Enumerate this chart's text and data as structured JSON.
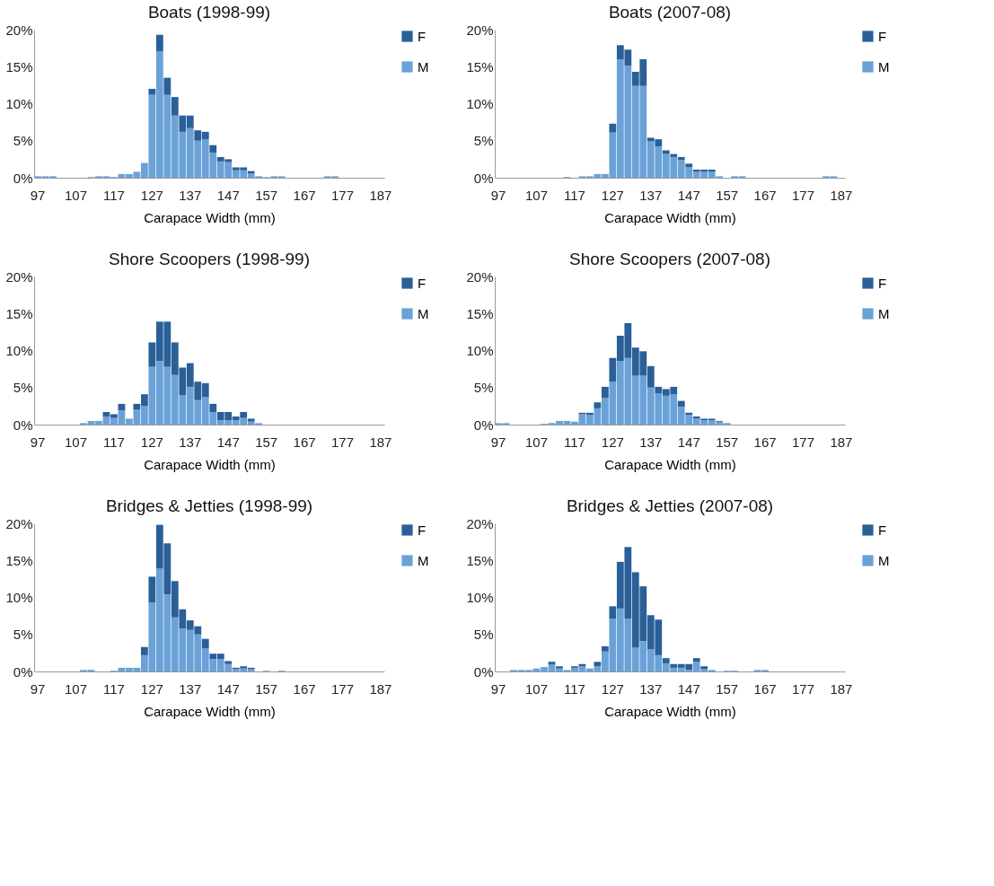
{
  "chart_data": [
    {
      "type": "bar",
      "title": "Boats (1998-99)",
      "xlabel": "Carapace Width (mm)",
      "categories": [
        "97",
        null,
        null,
        null,
        null,
        "107",
        null,
        null,
        null,
        null,
        "117",
        null,
        null,
        null,
        null,
        "127",
        null,
        null,
        null,
        null,
        "137",
        null,
        null,
        null,
        null,
        "147",
        null,
        null,
        null,
        null,
        "157",
        null,
        null,
        null,
        null,
        "167",
        null,
        null,
        null,
        null,
        "177",
        null,
        null,
        null,
        null,
        "187"
      ],
      "stacked": true,
      "ylim": [
        0,
        20
      ],
      "yticks": [
        {
          "value": 0,
          "label": "0%"
        },
        {
          "value": 5,
          "label": "5%"
        },
        {
          "value": 10,
          "label": "10%"
        },
        {
          "value": 15,
          "label": "15%"
        },
        {
          "value": 20,
          "label": "20%"
        }
      ],
      "legend": "right",
      "grid": false,
      "series": [
        {
          "name": "M",
          "color": "#6aa2d8",
          "values": [
            0.2,
            0.2,
            0.2,
            0,
            0,
            0,
            0,
            0.1,
            0.2,
            0.2,
            0.1,
            0.5,
            0.5,
            0.8,
            2.0,
            11.2,
            17.1,
            11.2,
            8.4,
            6.2,
            6.7,
            5.0,
            5.2,
            3.4,
            2.2,
            2.1,
            1.0,
            1.0,
            0.6,
            0.2,
            0.1,
            0.2,
            0.2,
            0,
            0,
            0,
            0,
            0,
            0.2,
            0.2,
            0,
            0,
            0,
            0,
            0,
            0
          ]
        },
        {
          "name": "F",
          "color": "#2a5f98",
          "values": [
            0,
            0,
            0,
            0,
            0,
            0,
            0,
            0,
            0,
            0,
            0,
            0,
            0,
            0,
            0,
            0.8,
            2.2,
            2.3,
            2.5,
            2.2,
            1.7,
            1.4,
            1.0,
            1.0,
            0.6,
            0.4,
            0.4,
            0.4,
            0.3,
            0,
            0,
            0,
            0,
            0,
            0,
            0,
            0,
            0,
            0,
            0,
            0,
            0,
            0,
            0,
            0,
            0
          ]
        }
      ]
    },
    {
      "type": "bar",
      "title": "Boats (2007-08)",
      "xlabel": "Carapace Width (mm)",
      "categories": [
        "97",
        null,
        null,
        null,
        null,
        "107",
        null,
        null,
        null,
        null,
        "117",
        null,
        null,
        null,
        null,
        "127",
        null,
        null,
        null,
        null,
        "137",
        null,
        null,
        null,
        null,
        "147",
        null,
        null,
        null,
        null,
        "157",
        null,
        null,
        null,
        null,
        "167",
        null,
        null,
        null,
        null,
        "177",
        null,
        null,
        null,
        null,
        "187"
      ],
      "stacked": true,
      "ylim": [
        0,
        20
      ],
      "yticks": [
        {
          "value": 0,
          "label": "0%"
        },
        {
          "value": 5,
          "label": "5%"
        },
        {
          "value": 10,
          "label": "10%"
        },
        {
          "value": 15,
          "label": "15%"
        },
        {
          "value": 20,
          "label": "20%"
        }
      ],
      "legend": "right",
      "grid": false,
      "series": [
        {
          "name": "M",
          "color": "#6aa2d8",
          "values": [
            0,
            0,
            0,
            0,
            0,
            0,
            0,
            0,
            0,
            0.1,
            0,
            0.2,
            0.2,
            0.5,
            0.5,
            6.1,
            16.0,
            15.1,
            12.4,
            12.4,
            4.9,
            4.2,
            3.2,
            2.8,
            2.4,
            1.4,
            0.8,
            0.8,
            0.8,
            0.2,
            0,
            0.2,
            0.2,
            0,
            0,
            0,
            0,
            0,
            0,
            0,
            0,
            0,
            0,
            0.2,
            0.2,
            0
          ]
        },
        {
          "name": "F",
          "color": "#2a5f98",
          "values": [
            0,
            0,
            0,
            0,
            0,
            0,
            0,
            0,
            0,
            0,
            0,
            0,
            0,
            0,
            0,
            1.2,
            1.9,
            2.2,
            1.9,
            3.6,
            0.5,
            1.0,
            0.5,
            0.4,
            0.4,
            0.5,
            0.3,
            0.3,
            0.3,
            0,
            0,
            0,
            0,
            0,
            0,
            0,
            0,
            0,
            0,
            0,
            0,
            0,
            0,
            0,
            0,
            0
          ]
        }
      ]
    },
    {
      "type": "bar",
      "title": "Shore Scoopers (1998-99)",
      "xlabel": "Carapace Width (mm)",
      "categories": [
        "97",
        null,
        null,
        null,
        null,
        "107",
        null,
        null,
        null,
        null,
        "117",
        null,
        null,
        null,
        null,
        "127",
        null,
        null,
        null,
        null,
        "137",
        null,
        null,
        null,
        null,
        "147",
        null,
        null,
        null,
        null,
        "157",
        null,
        null,
        null,
        null,
        "167",
        null,
        null,
        null,
        null,
        "177",
        null,
        null,
        null,
        null,
        "187"
      ],
      "stacked": true,
      "ylim": [
        0,
        20
      ],
      "yticks": [
        {
          "value": 0,
          "label": "0%"
        },
        {
          "value": 5,
          "label": "5%"
        },
        {
          "value": 10,
          "label": "10%"
        },
        {
          "value": 15,
          "label": "15%"
        },
        {
          "value": 20,
          "label": "20%"
        }
      ],
      "legend": "right",
      "grid": false,
      "series": [
        {
          "name": "M",
          "color": "#6aa2d8",
          "values": [
            0,
            0,
            0,
            0,
            0,
            0,
            0.2,
            0.5,
            0.5,
            1.1,
            0.9,
            1.9,
            0.8,
            2.0,
            2.5,
            7.8,
            8.6,
            7.8,
            6.7,
            4.0,
            5.1,
            3.3,
            3.7,
            1.7,
            0.6,
            0.6,
            0.6,
            0.9,
            0.4,
            0.2,
            0,
            0,
            0,
            0,
            0,
            0,
            0,
            0,
            0,
            0,
            0,
            0,
            0,
            0,
            0,
            0
          ]
        },
        {
          "name": "F",
          "color": "#2a5f98",
          "values": [
            0,
            0,
            0,
            0,
            0,
            0,
            0,
            0,
            0,
            0.6,
            0.5,
            0.9,
            0,
            0.8,
            1.6,
            3.3,
            5.3,
            6.1,
            4.4,
            3.7,
            3.2,
            2.5,
            1.9,
            1.1,
            1.1,
            1.1,
            0.5,
            0.8,
            0.4,
            0,
            0,
            0,
            0,
            0,
            0,
            0,
            0,
            0,
            0,
            0,
            0,
            0,
            0,
            0,
            0,
            0
          ]
        }
      ]
    },
    {
      "type": "bar",
      "title": "Shore Scoopers (2007-08)",
      "xlabel": "Carapace Width (mm)",
      "categories": [
        "97",
        null,
        null,
        null,
        null,
        "107",
        null,
        null,
        null,
        null,
        "117",
        null,
        null,
        null,
        null,
        "127",
        null,
        null,
        null,
        null,
        "137",
        null,
        null,
        null,
        null,
        "147",
        null,
        null,
        null,
        null,
        "157",
        null,
        null,
        null,
        null,
        "167",
        null,
        null,
        null,
        null,
        "177",
        null,
        null,
        null,
        null,
        "187"
      ],
      "stacked": true,
      "ylim": [
        0,
        20
      ],
      "yticks": [
        {
          "value": 0,
          "label": "0%"
        },
        {
          "value": 5,
          "label": "5%"
        },
        {
          "value": 10,
          "label": "10%"
        },
        {
          "value": 15,
          "label": "15%"
        },
        {
          "value": 20,
          "label": "20%"
        }
      ],
      "legend": "right",
      "grid": false,
      "series": [
        {
          "name": "M",
          "color": "#6aa2d8",
          "values": [
            0.2,
            0.2,
            0,
            0,
            0,
            0,
            0.1,
            0.2,
            0.5,
            0.5,
            0.4,
            1.4,
            1.3,
            2.2,
            3.6,
            5.8,
            8.6,
            9.0,
            6.6,
            6.6,
            5.0,
            4.2,
            3.9,
            4.1,
            2.4,
            1.3,
            0.8,
            0.6,
            0.6,
            0.4,
            0.2,
            0,
            0,
            0,
            0,
            0,
            0,
            0,
            0,
            0,
            0,
            0,
            0,
            0,
            0,
            0
          ]
        },
        {
          "name": "F",
          "color": "#2a5f98",
          "values": [
            0,
            0,
            0,
            0,
            0,
            0,
            0,
            0,
            0,
            0,
            0,
            0.2,
            0.3,
            0.8,
            1.5,
            3.2,
            3.4,
            4.7,
            3.8,
            3.3,
            2.9,
            0.9,
            0.9,
            1.0,
            0.8,
            0.3,
            0.3,
            0.2,
            0.2,
            0.1,
            0,
            0,
            0,
            0,
            0,
            0,
            0,
            0,
            0,
            0,
            0,
            0,
            0,
            0,
            0,
            0
          ]
        }
      ]
    },
    {
      "type": "bar",
      "title": "Bridges & Jetties (1998-99)",
      "xlabel": "Carapace Width (mm)",
      "categories": [
        "97",
        null,
        null,
        null,
        null,
        "107",
        null,
        null,
        null,
        null,
        "117",
        null,
        null,
        null,
        null,
        "127",
        null,
        null,
        null,
        null,
        "137",
        null,
        null,
        null,
        null,
        "147",
        null,
        null,
        null,
        null,
        "157",
        null,
        null,
        null,
        null,
        "167",
        null,
        null,
        null,
        null,
        "177",
        null,
        null,
        null,
        null,
        "187"
      ],
      "stacked": true,
      "ylim": [
        0,
        20
      ],
      "yticks": [
        {
          "value": 0,
          "label": "0%"
        },
        {
          "value": 5,
          "label": "5%"
        },
        {
          "value": 10,
          "label": "10%"
        },
        {
          "value": 15,
          "label": "15%"
        },
        {
          "value": 20,
          "label": "20%"
        }
      ],
      "legend": "right",
      "grid": false,
      "series": [
        {
          "name": "M",
          "color": "#6aa2d8",
          "values": [
            0,
            0,
            0,
            0,
            0,
            0,
            0.2,
            0.2,
            0,
            0,
            0.1,
            0.5,
            0.5,
            0.5,
            2.2,
            9.3,
            13.9,
            10.4,
            7.3,
            5.8,
            5.6,
            5.0,
            3.1,
            1.7,
            1.7,
            1.0,
            0.3,
            0.4,
            0.3,
            0,
            0.1,
            0,
            0.1,
            0,
            0,
            0,
            0,
            0,
            0,
            0,
            0,
            0,
            0,
            0,
            0,
            0
          ]
        },
        {
          "name": "F",
          "color": "#2a5f98",
          "values": [
            0,
            0,
            0,
            0,
            0,
            0,
            0,
            0,
            0,
            0,
            0,
            0,
            0,
            0,
            1.1,
            3.5,
            5.9,
            6.9,
            4.9,
            2.6,
            1.3,
            1.1,
            1.3,
            0.7,
            0.7,
            0.4,
            0.2,
            0.3,
            0.2,
            0,
            0,
            0,
            0,
            0,
            0,
            0,
            0,
            0,
            0,
            0,
            0,
            0,
            0,
            0,
            0,
            0
          ]
        }
      ]
    },
    {
      "type": "bar",
      "title": "Bridges & Jetties (2007-08)",
      "xlabel": "Carapace Width (mm)",
      "categories": [
        "97",
        null,
        null,
        null,
        null,
        "107",
        null,
        null,
        null,
        null,
        "117",
        null,
        null,
        null,
        null,
        "127",
        null,
        null,
        null,
        null,
        "137",
        null,
        null,
        null,
        null,
        "147",
        null,
        null,
        null,
        null,
        "157",
        null,
        null,
        null,
        null,
        "167",
        null,
        null,
        null,
        null,
        "177",
        null,
        null,
        null,
        null,
        "187"
      ],
      "stacked": true,
      "ylim": [
        0,
        20
      ],
      "yticks": [
        {
          "value": 0,
          "label": "0%"
        },
        {
          "value": 5,
          "label": "5%"
        },
        {
          "value": 10,
          "label": "10%"
        },
        {
          "value": 15,
          "label": "15%"
        },
        {
          "value": 20,
          "label": "20%"
        }
      ],
      "legend": "right",
      "grid": false,
      "series": [
        {
          "name": "M",
          "color": "#6aa2d8",
          "values": [
            0,
            0,
            0.2,
            0.2,
            0.2,
            0.4,
            0.6,
            0.9,
            0.4,
            0.2,
            0.5,
            0.7,
            0.4,
            0.7,
            2.7,
            7.1,
            8.5,
            7.1,
            3.2,
            4.1,
            3.0,
            2.2,
            1.1,
            0.5,
            0.5,
            0.2,
            1.3,
            0.3,
            0.2,
            0,
            0.1,
            0.1,
            0,
            0,
            0.2,
            0.2,
            0,
            0,
            0,
            0,
            0,
            0,
            0,
            0,
            0,
            0
          ]
        },
        {
          "name": "F",
          "color": "#2a5f98",
          "values": [
            0,
            0,
            0,
            0,
            0,
            0,
            0,
            0.4,
            0.3,
            0,
            0.2,
            0.3,
            0,
            0.6,
            0.7,
            1.7,
            6.3,
            9.7,
            10.2,
            7.4,
            4.6,
            4.8,
            0.7,
            0.5,
            0.5,
            0.8,
            0.5,
            0.4,
            0,
            0,
            0,
            0,
            0,
            0,
            0,
            0,
            0,
            0,
            0,
            0,
            0,
            0,
            0,
            0,
            0,
            0
          ]
        }
      ]
    }
  ]
}
